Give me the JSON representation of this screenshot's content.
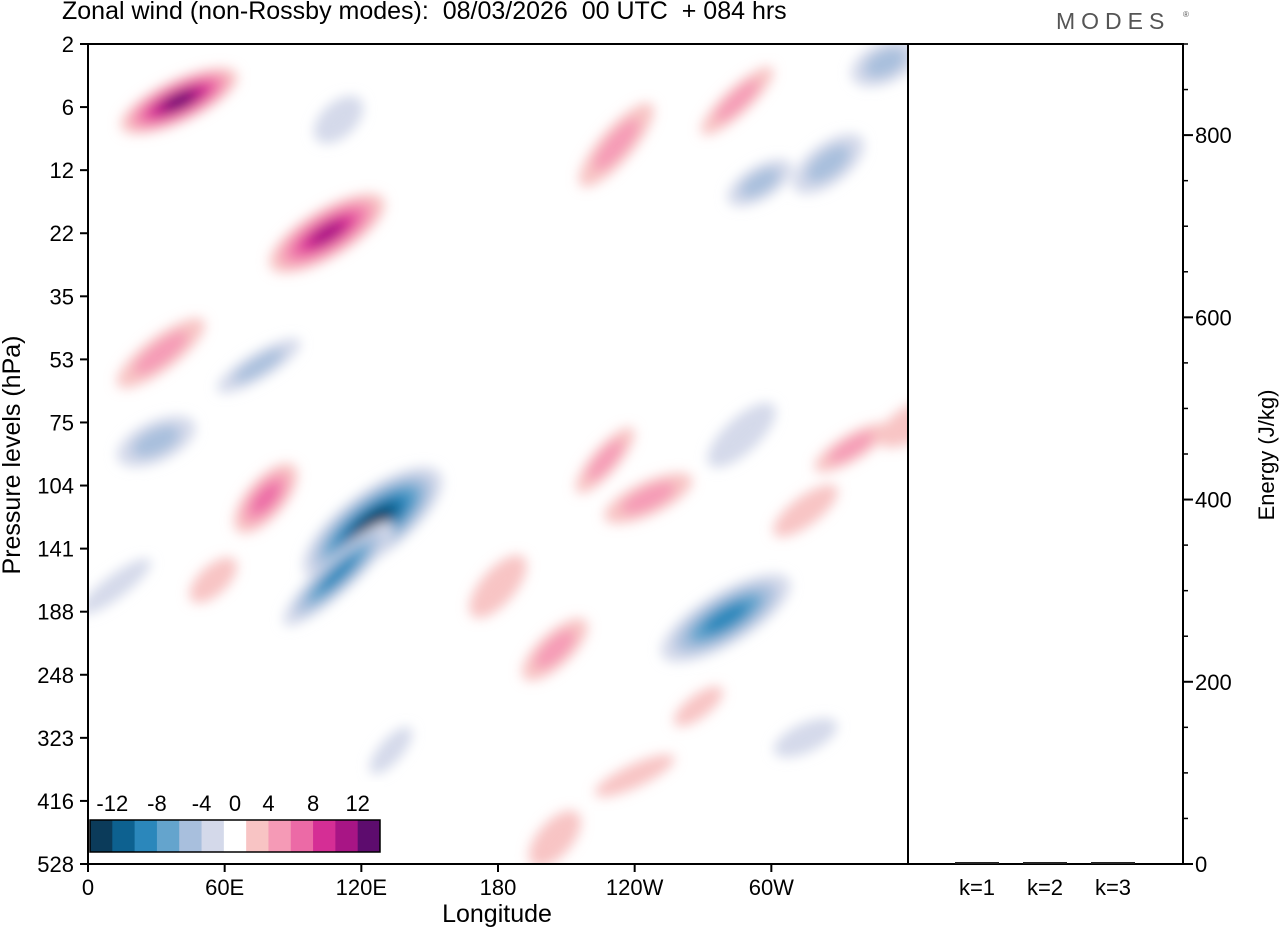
{
  "header": {
    "title": "Zonal wind (non-Rossby modes):  08/03/2026  00 UTC  + 084 hrs",
    "brand": "MODES",
    "brand_mark": "®"
  },
  "chart_data": [
    {
      "type": "heatmap",
      "title": "Zonal wind (non-Rossby modes):  08/03/2026  00 UTC  + 084 hrs",
      "xlabel": "Longitude",
      "ylabel": "Pressure levels (hPa)",
      "x_ticks": [
        "0",
        "60E",
        "120E",
        "180",
        "120W",
        "60W"
      ],
      "x_tick_values": [
        0,
        60,
        120,
        180,
        240,
        300
      ],
      "xlim": [
        0,
        360
      ],
      "y_ticks": [
        "2",
        "6",
        "12",
        "22",
        "35",
        "53",
        "75",
        "104",
        "141",
        "188",
        "248",
        "323",
        "416",
        "528"
      ],
      "colorbar": {
        "labels": [
          "-12",
          "-8",
          "-4",
          "0",
          "4",
          "8",
          "12"
        ],
        "label_values": [
          -12,
          -8,
          -4,
          0,
          4,
          8,
          12
        ],
        "levels": [
          -14,
          -12,
          -10,
          -8,
          -6,
          -4,
          -2,
          2,
          4,
          6,
          8,
          10,
          12,
          14
        ],
        "colors": [
          "#0b3b5a",
          "#0d6190",
          "#2b87bb",
          "#64a4cd",
          "#a8bfdd",
          "#d4d9ea",
          "#ffffff",
          "#f8c4c4",
          "#f59ab6",
          "#ec6aa6",
          "#d52e95",
          "#a81585",
          "#5d0c6e"
        ]
      },
      "features": [
        {
          "lon": 40,
          "level": 0.9,
          "value": 13
        },
        {
          "lon": 105,
          "level": 3.0,
          "value": 11
        },
        {
          "lon": 125,
          "level": 7.6,
          "value": -14
        },
        {
          "lon": 110,
          "level": 8.4,
          "value": -10
        },
        {
          "lon": 78,
          "level": 7.2,
          "value": 8
        },
        {
          "lon": 30,
          "level": 6.3,
          "value": -6
        },
        {
          "lon": 75,
          "level": 5.1,
          "value": -6
        },
        {
          "lon": 32,
          "level": 4.9,
          "value": 5
        },
        {
          "lon": 110,
          "level": 1.2,
          "value": -4
        },
        {
          "lon": 227,
          "level": 6.6,
          "value": 6
        },
        {
          "lon": 246,
          "level": 7.2,
          "value": 5
        },
        {
          "lon": 280,
          "level": 9.1,
          "value": -10
        },
        {
          "lon": 268,
          "level": 10.5,
          "value": 4
        },
        {
          "lon": 205,
          "level": 9.6,
          "value": 5
        },
        {
          "lon": 180,
          "level": 8.6,
          "value": 4
        },
        {
          "lon": 240,
          "level": 11.6,
          "value": 4
        },
        {
          "lon": 295,
          "level": 2.2,
          "value": -5
        },
        {
          "lon": 325,
          "level": 1.9,
          "value": -5
        },
        {
          "lon": 285,
          "level": 0.9,
          "value": 5
        },
        {
          "lon": 232,
          "level": 1.6,
          "value": 5
        },
        {
          "lon": 350,
          "level": 0.3,
          "value": -6
        },
        {
          "lon": 335,
          "level": 6.4,
          "value": 6
        },
        {
          "lon": 315,
          "level": 7.4,
          "value": 4
        },
        {
          "lon": 287,
          "level": 6.2,
          "value": -4
        },
        {
          "lon": 133,
          "level": 11.2,
          "value": -3
        },
        {
          "lon": 315,
          "level": 11.0,
          "value": -3
        },
        {
          "lon": 362,
          "level": 6.0,
          "value": 4
        },
        {
          "lon": 12,
          "level": 8.6,
          "value": -4
        },
        {
          "lon": 55,
          "level": 8.5,
          "value": 4
        },
        {
          "lon": 205,
          "level": 12.6,
          "value": 4
        }
      ]
    },
    {
      "type": "bar",
      "categories": [
        "k=1",
        "k=2",
        "k=3"
      ],
      "values": [
        1,
        1,
        1
      ],
      "ylabel": "Energy (J/kg)",
      "ylim": [
        0,
        900
      ],
      "y_ticks": [
        0,
        200,
        400,
        600,
        800
      ]
    }
  ]
}
